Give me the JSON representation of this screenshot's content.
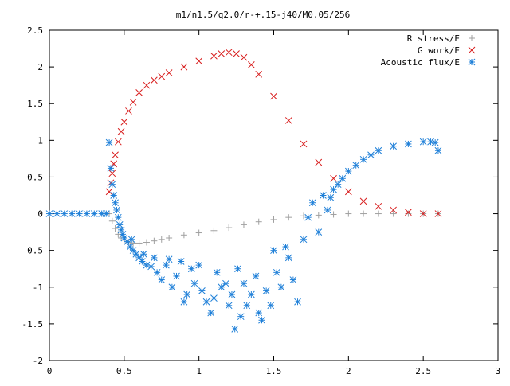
{
  "chart_data": {
    "type": "scatter",
    "title": "m1/n1.5/q2.0/r-+.15-j40/M0.05/256",
    "xlabel": "",
    "ylabel": "",
    "xlim": [
      0,
      3
    ],
    "ylim": [
      -2,
      2.5
    ],
    "x_ticks": [
      0,
      0.5,
      1,
      1.5,
      2,
      2.5,
      3
    ],
    "x_tick_labels": [
      "0",
      "0.5",
      "1",
      "1.5",
      "2",
      "2.5",
      "3"
    ],
    "y_ticks": [
      -2,
      -1.5,
      -1,
      -0.5,
      0,
      0.5,
      1,
      1.5,
      2,
      2.5
    ],
    "y_tick_labels": [
      "-2",
      "-1.5",
      "-1",
      "-0.5",
      "0",
      "0.5",
      "1",
      "1.5",
      "2",
      "2.5"
    ],
    "grid": false,
    "legend_position": "top-right",
    "series": [
      {
        "name": "R stress/E",
        "marker": "plus",
        "color": "#a0a0a0",
        "x": [
          0.4,
          0.42,
          0.44,
          0.46,
          0.48,
          0.5,
          0.53,
          0.56,
          0.6,
          0.65,
          0.7,
          0.75,
          0.8,
          0.9,
          1.0,
          1.1,
          1.2,
          1.3,
          1.4,
          1.5,
          1.6,
          1.7,
          1.8,
          1.9,
          2.0,
          2.1,
          2.2,
          2.3,
          2.4,
          2.5,
          2.6
        ],
        "y": [
          0.0,
          -0.1,
          -0.2,
          -0.28,
          -0.33,
          -0.36,
          -0.39,
          -0.4,
          -0.4,
          -0.39,
          -0.37,
          -0.35,
          -0.33,
          -0.29,
          -0.26,
          -0.23,
          -0.19,
          -0.15,
          -0.11,
          -0.08,
          -0.05,
          -0.03,
          -0.02,
          -0.01,
          0.0,
          0.0,
          0.0,
          0.0,
          0.0,
          0.0,
          0.0
        ]
      },
      {
        "name": "G work/E",
        "marker": "cross",
        "color": "#d81e1e",
        "x": [
          0.4,
          0.41,
          0.42,
          0.43,
          0.44,
          0.46,
          0.48,
          0.5,
          0.53,
          0.56,
          0.6,
          0.65,
          0.7,
          0.75,
          0.8,
          0.9,
          1.0,
          1.1,
          1.15,
          1.2,
          1.25,
          1.3,
          1.35,
          1.4,
          1.5,
          1.6,
          1.7,
          1.8,
          1.9,
          2.0,
          2.1,
          2.2,
          2.3,
          2.4,
          2.5,
          2.6
        ],
        "y": [
          0.3,
          0.42,
          0.55,
          0.68,
          0.8,
          0.98,
          1.12,
          1.25,
          1.4,
          1.52,
          1.65,
          1.75,
          1.82,
          1.87,
          1.92,
          2.0,
          2.08,
          2.15,
          2.18,
          2.2,
          2.18,
          2.13,
          2.03,
          1.9,
          1.6,
          1.27,
          0.95,
          0.7,
          0.48,
          0.3,
          0.17,
          0.1,
          0.05,
          0.02,
          0.0,
          0.0
        ]
      },
      {
        "name": "Acoustic flux/E",
        "marker": "star",
        "color": "#1e7fd8",
        "x": [
          0.0,
          0.05,
          0.1,
          0.15,
          0.2,
          0.25,
          0.3,
          0.35,
          0.38,
          0.4,
          0.41,
          0.42,
          0.43,
          0.44,
          0.45,
          0.46,
          0.47,
          0.48,
          0.49,
          0.5,
          0.52,
          0.54,
          0.56,
          0.58,
          0.6,
          0.62,
          0.65,
          0.55,
          0.63,
          0.68,
          0.7,
          0.72,
          0.75,
          0.78,
          0.8,
          0.82,
          0.85,
          0.88,
          0.9,
          0.92,
          0.95,
          0.97,
          1.0,
          1.02,
          1.05,
          1.08,
          1.1,
          1.12,
          1.15,
          1.18,
          1.2,
          1.22,
          1.24,
          1.26,
          1.28,
          1.3,
          1.32,
          1.35,
          1.38,
          1.4,
          1.42,
          1.45,
          1.48,
          1.5,
          1.52,
          1.55,
          1.58,
          1.6,
          1.63,
          1.66,
          1.7,
          1.73,
          1.76,
          1.8,
          1.83,
          1.86,
          1.88,
          1.9,
          1.93,
          1.96,
          2.0,
          2.05,
          2.1,
          2.15,
          2.2,
          2.3,
          2.4,
          2.5,
          2.55,
          2.58,
          2.6
        ],
        "y": [
          0.0,
          0.0,
          0.0,
          0.0,
          0.0,
          0.0,
          0.0,
          0.0,
          0.0,
          0.97,
          0.62,
          0.4,
          0.25,
          0.15,
          0.05,
          -0.05,
          -0.15,
          -0.22,
          -0.28,
          -0.33,
          -0.38,
          -0.45,
          -0.5,
          -0.55,
          -0.6,
          -0.65,
          -0.7,
          -0.35,
          -0.55,
          -0.72,
          -0.6,
          -0.8,
          -0.9,
          -0.7,
          -0.62,
          -1.0,
          -0.85,
          -0.65,
          -1.2,
          -1.1,
          -0.75,
          -0.95,
          -0.7,
          -1.05,
          -1.2,
          -1.35,
          -1.15,
          -0.8,
          -1.0,
          -0.95,
          -1.25,
          -1.1,
          -1.57,
          -0.75,
          -1.4,
          -0.95,
          -1.25,
          -1.1,
          -0.85,
          -1.35,
          -1.45,
          -1.05,
          -1.25,
          -0.5,
          -0.8,
          -1.0,
          -0.45,
          -0.6,
          -0.9,
          -1.2,
          -0.35,
          -0.05,
          0.15,
          -0.25,
          0.25,
          0.05,
          0.22,
          0.33,
          0.4,
          0.48,
          0.58,
          0.66,
          0.74,
          0.8,
          0.86,
          0.92,
          0.95,
          0.98,
          0.98,
          0.97,
          0.86
        ]
      }
    ]
  }
}
